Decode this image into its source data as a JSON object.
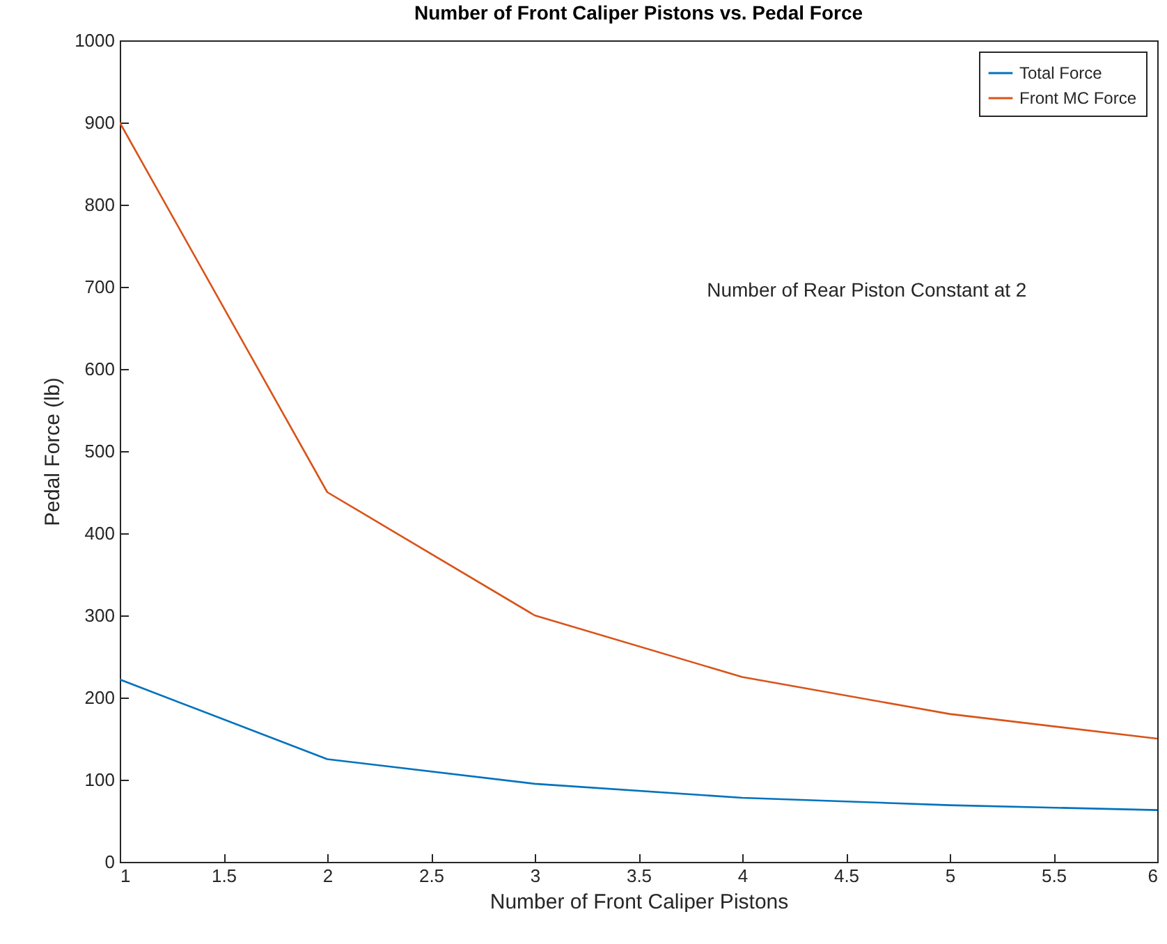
{
  "chart_data": {
    "type": "line",
    "title": "Number of Front Caliper Pistons vs. Pedal Force",
    "xlabel": "Number of Front Caliper Pistons",
    "ylabel": "Pedal Force (lb)",
    "x": [
      1,
      2,
      3,
      4,
      5,
      6
    ],
    "series": [
      {
        "name": "Total Force",
        "color": "#0072bd",
        "values": [
          222,
          125,
          95,
          78,
          69,
          63
        ]
      },
      {
        "name": "Front MC Force",
        "color": "#d95319",
        "values": [
          900,
          450,
          300,
          225,
          180,
          150
        ]
      }
    ],
    "xlim": [
      1,
      6
    ],
    "xticks": [
      1,
      1.5,
      2,
      2.5,
      3,
      3.5,
      4,
      4.5,
      5,
      5.5,
      6
    ],
    "ylim": [
      0,
      1000
    ],
    "yticks": [
      0,
      100,
      200,
      300,
      400,
      500,
      600,
      700,
      800,
      900,
      1000
    ],
    "legend": "top right",
    "grid": false,
    "marker": "none",
    "line_style": "solid",
    "annotations": [
      "Number of Rear Piston Constant at 2"
    ]
  }
}
